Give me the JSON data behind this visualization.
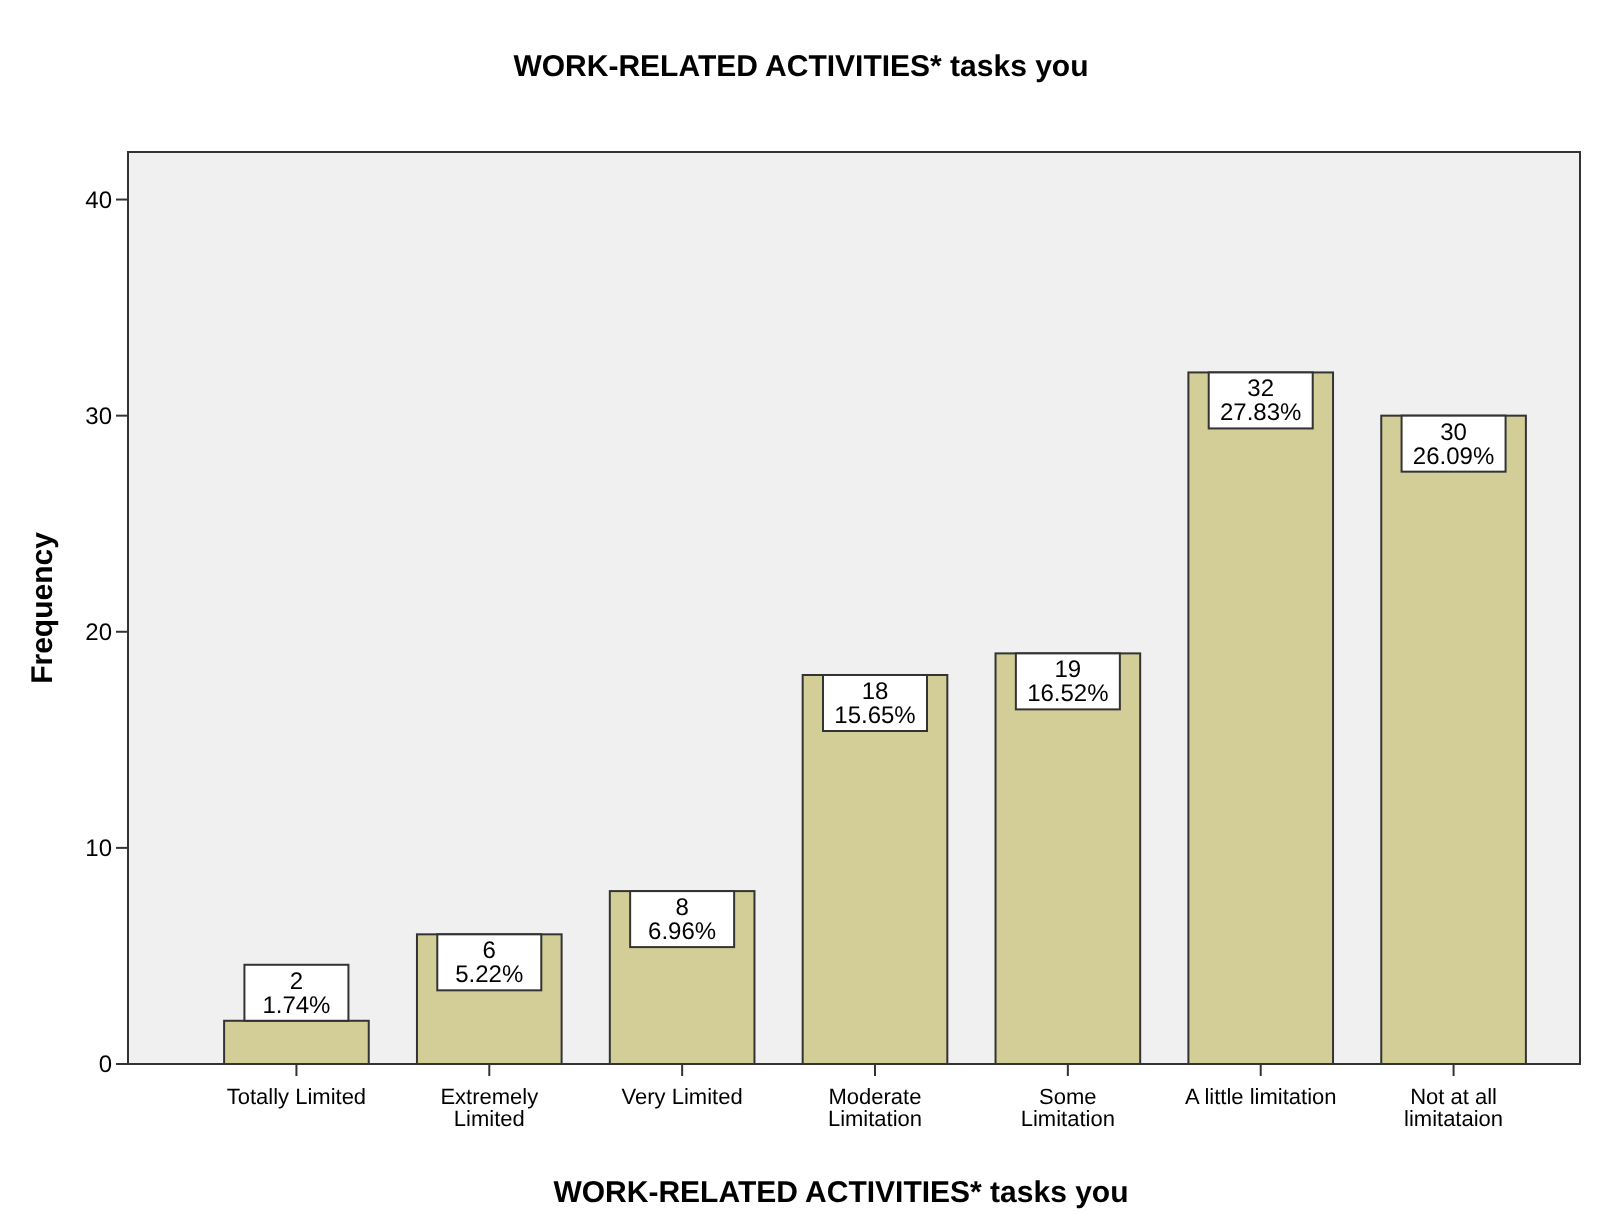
{
  "chart_data": {
    "type": "bar",
    "title": "WORK-RELATED ACTIVITIES* tasks you",
    "xlabel": "WORK-RELATED ACTIVITIES* tasks you",
    "ylabel": "Frequency",
    "categories": [
      "Totally Limited",
      "Extremely\nLimited",
      "Very Limited",
      "Moderate\nLimitation",
      "Some\nLimitation",
      "A little limitation",
      "Not at all\nlimitataion"
    ],
    "values": [
      2,
      6,
      8,
      18,
      19,
      32,
      30
    ],
    "value_labels": [
      "2\n1.74%",
      "6\n5.22%",
      "8\n6.96%",
      "18\n15.65%",
      "19\n16.52%",
      "32\n27.83%",
      "30\n26.09%"
    ],
    "color": "#d3ce97",
    "ylim": [
      0,
      42.2
    ],
    "yticks": [
      0,
      10,
      20,
      30,
      40
    ],
    "grid": false
  }
}
